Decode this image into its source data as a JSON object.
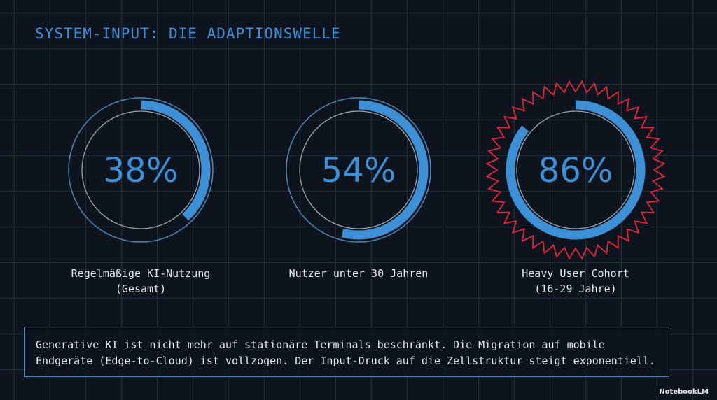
{
  "title": "SYSTEM-INPUT: DIE ADAPTIONSWELLE",
  "chart_data": [
    {
      "type": "donut",
      "title": [
        "Regelmäßige KI-Nutzung",
        "(Gesamt)"
      ],
      "values": [
        38
      ],
      "value_labels": [
        "38%"
      ],
      "ylim": [
        0,
        100
      ],
      "color": "#3d8fd6"
    },
    {
      "type": "donut",
      "title": [
        "Nutzer unter 30 Jahren"
      ],
      "values": [
        54
      ],
      "value_labels": [
        "54%"
      ],
      "ylim": [
        0,
        100
      ],
      "color": "#3d8fd6"
    },
    {
      "type": "donut",
      "title": [
        "Heavy User Cohort",
        "(16-29 Jahre)"
      ],
      "values": [
        86
      ],
      "value_labels": [
        "86%"
      ],
      "ylim": [
        0,
        100
      ],
      "color": "#3d8fd6",
      "ring_color": "#e0263e"
    }
  ],
  "caption": "Generative KI ist nicht mehr auf stationäre Terminals beschränkt. Die Migration auf mobile Endgeräte (Edge-to-Cloud) ist vollzogen. Der Input-Druck auf die Zellstruktur steigt exponentiell.",
  "brand": "NotebookLM"
}
